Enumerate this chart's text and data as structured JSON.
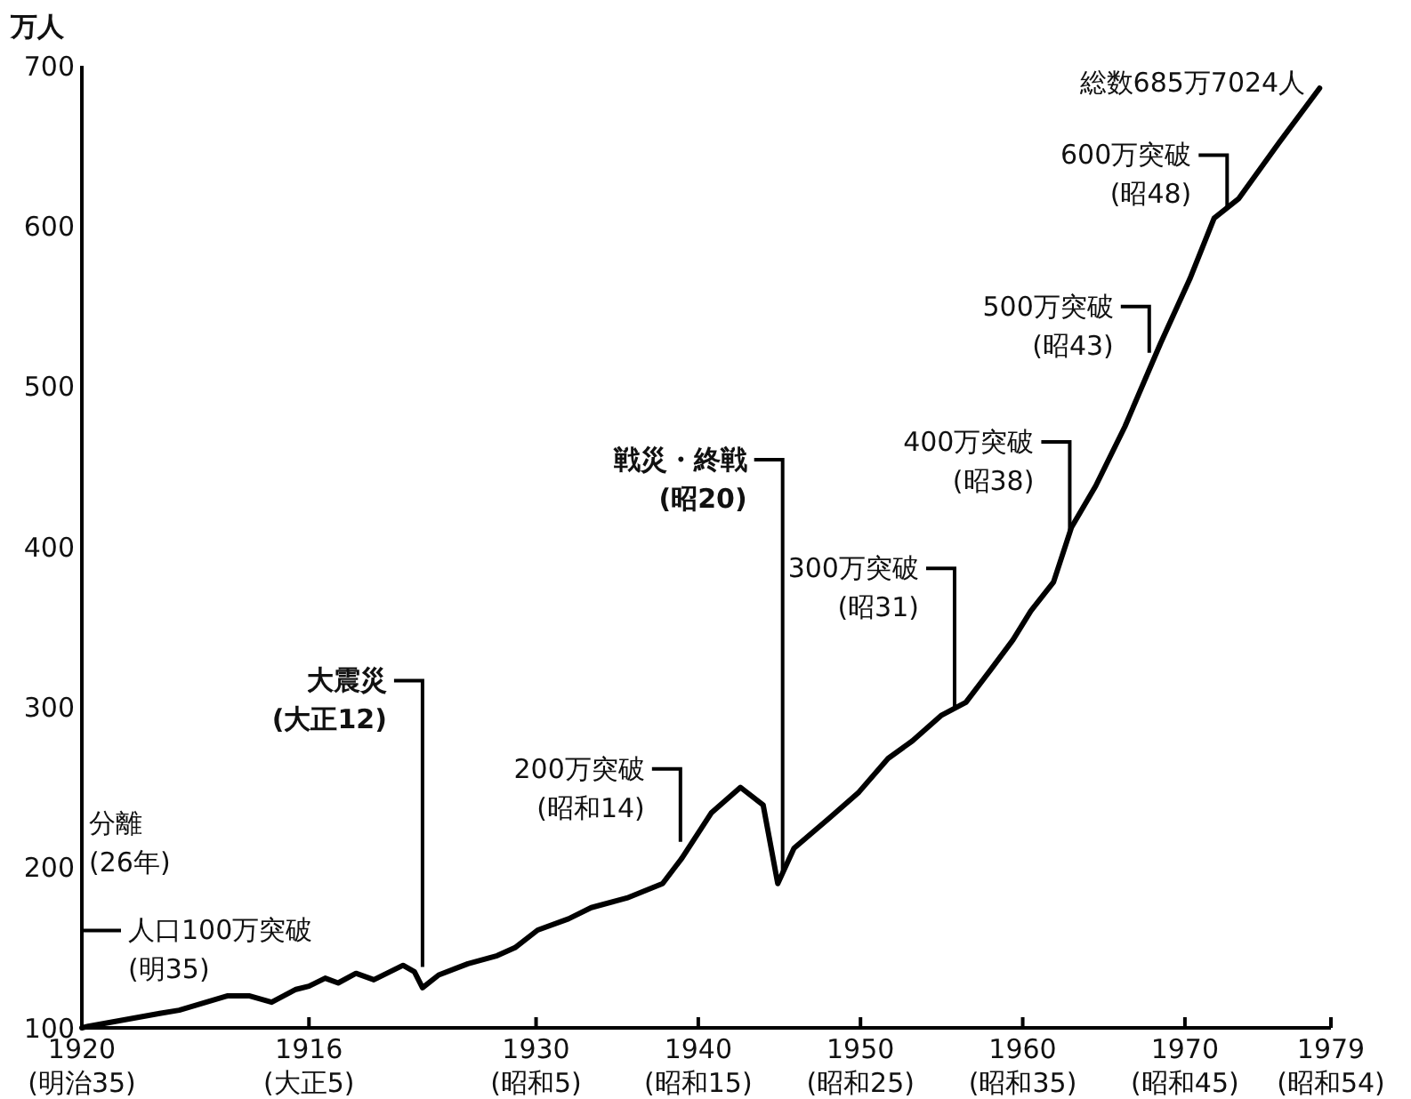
{
  "chart_data": {
    "type": "line",
    "ylabel": "万人",
    "xlim": [
      1902,
      1979
    ],
    "xticks": [
      {
        "value": 1902,
        "label": null
      },
      1916,
      1930,
      1940,
      1950,
      1960,
      1970,
      1979
    ],
    "ylim": [
      100,
      700
    ],
    "yticks": [
      100,
      200,
      300,
      400,
      500,
      600,
      700
    ],
    "grid": false,
    "marker": "none",
    "line_style": "solid",
    "series": [
      {
        "color": "#000000",
        "x": [
          1902,
          1902.4,
          1906.8,
          1908,
          1911,
          1912.3,
          1913.7,
          1915.2,
          1916,
          1917,
          1917.8,
          1918.9,
          1920,
          1921.8,
          1922.5,
          1923,
          1924,
          1925.8,
          1927.6,
          1928.7,
          1930.1,
          1932,
          1933.4,
          1935.6,
          1937.8,
          1939,
          1940.8,
          1942.6,
          1944,
          1944.9,
          1945.9,
          1948.1,
          1949.9,
          1951.7,
          1953.2,
          1955,
          1956.5,
          1958,
          1959.4,
          1960.5,
          1961.9,
          1963,
          1964.5,
          1966.3,
          1968.5,
          1970.3,
          1971.8,
          1973.3,
          1975.8,
          1978.3
        ],
        "values": [
          100,
          101,
          109,
          111,
          120,
          120,
          116,
          124,
          126,
          131,
          128,
          134,
          130,
          139,
          135,
          125,
          133,
          140,
          145,
          150,
          161,
          168,
          175,
          181,
          190,
          206,
          234,
          250,
          239,
          190,
          212,
          231,
          247,
          268,
          279,
          295,
          303,
          323,
          342,
          360,
          378,
          412,
          438,
          475,
          527,
          567,
          605,
          617,
          652,
          686
        ]
      }
    ],
    "annotations": [
      "分離\n(26年)",
      {
        "text": "人口100万突破\n(明35)",
        "x": 1902,
        "y": 102
      },
      {
        "text": "大震災\n(大正12)",
        "x": 1923,
        "y": 138
      },
      {
        "text": "200万突破\n(昭和14)",
        "x": 1938.9,
        "y": 216
      },
      {
        "text": "戦災・終戦\n(昭20)",
        "x": 1945.2,
        "y": 197
      },
      {
        "text": "300万突破\n(昭31)",
        "x": 1955.8,
        "y": 299
      },
      {
        "text": "400万突破\n(昭38)",
        "x": 1962.9,
        "y": 410
      },
      {
        "text": "500万突破\n(昭43)",
        "x": 1967.8,
        "y": 521
      },
      {
        "text": "600万突破\n(昭48)",
        "x": 1972.6,
        "y": 611
      },
      {
        "text": "総数685万7024人",
        "x": 1978.3,
        "y": 686
      },
      "1920\n(明治35)",
      "(大正5)",
      "(昭和5)",
      "(昭和15)",
      "(昭和25)",
      "(昭和35)",
      "(昭和45)",
      "(昭和54)"
    ]
  }
}
